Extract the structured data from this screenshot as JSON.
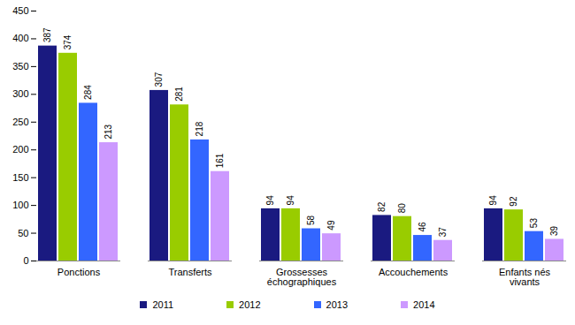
{
  "chart_data": {
    "type": "bar",
    "categories": [
      "Ponctions",
      "Transferts",
      "Grossesses échographiques",
      "Accouchements",
      "Enfants nés vivants"
    ],
    "series": [
      {
        "name": "2011",
        "color": "#1a1a80",
        "values": [
          387,
          307,
          94,
          82,
          94
        ]
      },
      {
        "name": "2012",
        "color": "#99cc00",
        "values": [
          374,
          281,
          94,
          80,
          92
        ]
      },
      {
        "name": "2013",
        "color": "#3366ff",
        "values": [
          284,
          218,
          58,
          46,
          53
        ]
      },
      {
        "name": "2014",
        "color": "#cc99ff",
        "values": [
          213,
          161,
          49,
          37,
          39
        ]
      }
    ],
    "ylim": [
      0,
      450
    ],
    "yticks": [
      0,
      50,
      100,
      150,
      200,
      250,
      300,
      350,
      400,
      450
    ],
    "grid": false,
    "data_labels": true,
    "legend": "bottom"
  }
}
